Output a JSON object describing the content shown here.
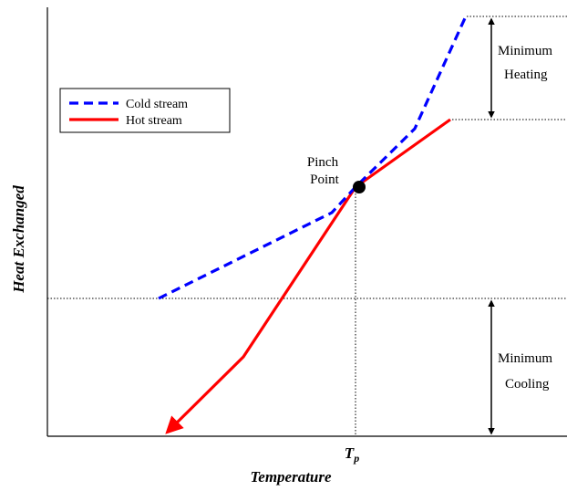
{
  "axes": {
    "x_title": "Temperature",
    "y_title": "Heat Exchanged",
    "pinch_tick_base": "T",
    "pinch_tick_sub": "p"
  },
  "legend": {
    "items": [
      {
        "label": "Cold stream",
        "color": "#0000ff",
        "style": "dashed"
      },
      {
        "label": "Hot stream",
        "color": "#ff0000",
        "style": "solid"
      }
    ]
  },
  "annotations": {
    "pinch_line1": "Pinch",
    "pinch_line2": "Point",
    "min_heating_line1": "Minimum",
    "min_heating_line2": "Heating",
    "min_cooling_line1": "Minimum",
    "min_cooling_line2": "Cooling"
  },
  "colors": {
    "cold_stream": "#0000ff",
    "hot_stream": "#ff0000",
    "axis": "#000000",
    "pinch_point": "#000000"
  }
}
